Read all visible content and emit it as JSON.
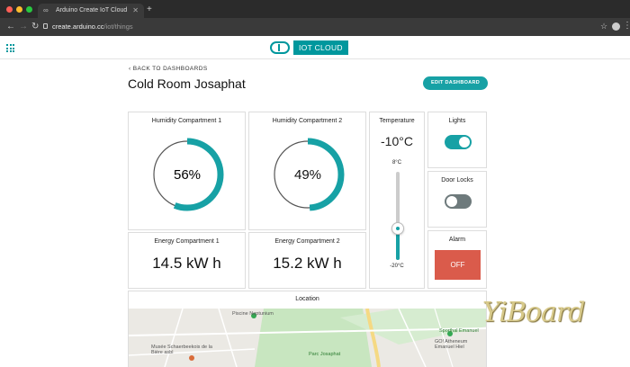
{
  "browser": {
    "tab_title": "Arduino Create IoT Cloud",
    "url_host": "create.arduino.cc",
    "url_path": "/iot/things"
  },
  "header": {
    "logo_text": "IOT CLOUD"
  },
  "page": {
    "back_label": "‹ BACK TO DASHBOARDS",
    "title": "Cold Room Josaphat",
    "edit_button": "EDIT DASHBOARD"
  },
  "widgets": {
    "humidity1": {
      "title": "Humidity Compartment 1",
      "value": "56%",
      "percent": 56
    },
    "humidity2": {
      "title": "Humidity Compartment 2",
      "value": "49%",
      "percent": 49
    },
    "temperature": {
      "title": "Temperature",
      "value": "-10°C",
      "max_label": "8°C",
      "min_label": "-20°C",
      "max": 8,
      "min": -20,
      "current": -10
    },
    "lights": {
      "title": "Lights",
      "on": true
    },
    "door_locks": {
      "title": "Door Locks",
      "on": false
    },
    "alarm": {
      "title": "Alarm",
      "button": "OFF"
    },
    "energy1": {
      "title": "Energy Compartment 1",
      "value": "14.5 kW h"
    },
    "energy2": {
      "title": "Energy Compartment 2",
      "value": "15.2 kW h"
    },
    "location": {
      "title": "Location"
    }
  },
  "map": {
    "labels": {
      "piscine": "Piscine Neptunium",
      "musee": "Musée Schaerbeekois de la Bière asbl",
      "parc": "Parc Josaphat",
      "sporthal": "Sporthal Emanuel",
      "athenee": "GO! Atheneum Emanuel Hiel",
      "road": "N"
    }
  },
  "watermark": "YiBoard",
  "colors": {
    "teal": "#17a1a5",
    "alarm_red": "#da5b4b",
    "toggle_off": "#6e7a7c"
  }
}
